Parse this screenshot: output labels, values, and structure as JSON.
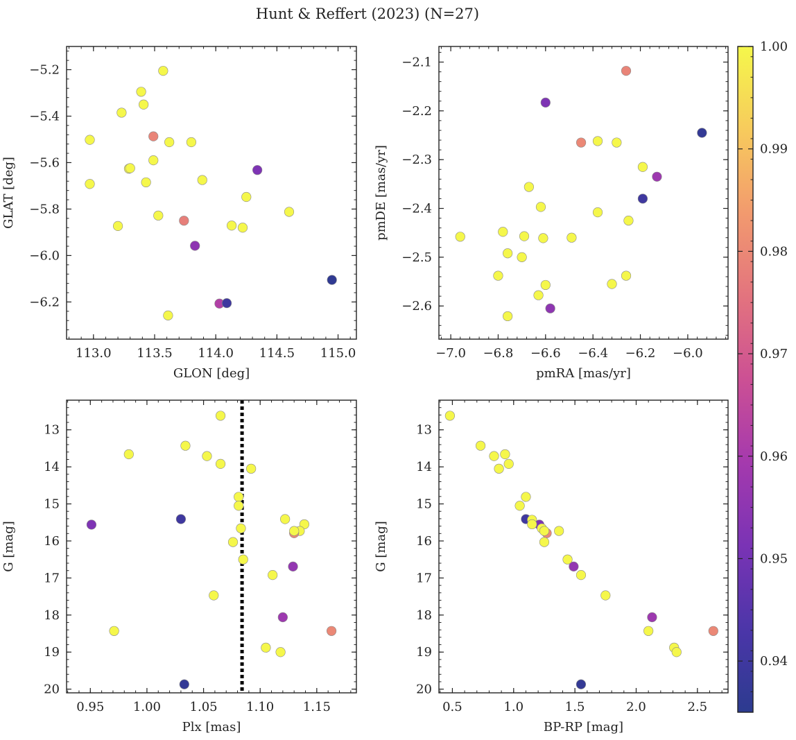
{
  "figure": {
    "title": "Hunt & Reffert (2023) (N=27)"
  },
  "colorbar": {
    "range": [
      0.935,
      1.0
    ],
    "ticks": [
      0.94,
      0.95,
      0.96,
      0.97,
      0.98,
      0.99,
      1.0
    ],
    "tick_labels": [
      "0.94",
      "0.95",
      "0.96",
      "0.97",
      "0.98",
      "0.99",
      "1.00"
    ],
    "colormap": "plasma"
  },
  "chart_data": [
    {
      "type": "scatter",
      "id": "glon-glat",
      "xlabel": "GLON [deg]",
      "ylabel": "GLAT [deg]",
      "xlim": [
        112.78,
        115.15
      ],
      "ylim": [
        -6.36,
        -5.1
      ],
      "xticks": [
        113.0,
        113.5,
        114.0,
        114.5,
        115.0
      ],
      "xtick_labels": [
        "113.0",
        "113.5",
        "114.0",
        "114.5",
        "115.0"
      ],
      "yticks": [
        -6.2,
        -6.0,
        -5.8,
        -5.6,
        -5.4,
        -5.2
      ],
      "ytick_labels": [
        "−6.2",
        "−6.0",
        "−5.8",
        "−5.6",
        "−5.4",
        "−5.2"
      ],
      "points": [
        {
          "x": 113.57,
          "y": -5.205,
          "c": 1.0
        },
        {
          "x": 113.39,
          "y": -5.295,
          "c": 1.0
        },
        {
          "x": 113.41,
          "y": -5.35,
          "c": 1.0
        },
        {
          "x": 113.23,
          "y": -5.385,
          "c": 1.0
        },
        {
          "x": 113.49,
          "y": -5.487,
          "c": 0.979
        },
        {
          "x": 112.97,
          "y": -5.502,
          "c": 1.0
        },
        {
          "x": 113.62,
          "y": -5.512,
          "c": 1.0
        },
        {
          "x": 113.8,
          "y": -5.512,
          "c": 1.0
        },
        {
          "x": 113.49,
          "y": -5.59,
          "c": 1.0
        },
        {
          "x": 113.29,
          "y": -5.626,
          "c": 1.0
        },
        {
          "x": 114.34,
          "y": -5.632,
          "c": 0.952
        },
        {
          "x": 113.89,
          "y": -5.675,
          "c": 1.0
        },
        {
          "x": 113.43,
          "y": -5.685,
          "c": 1.0
        },
        {
          "x": 112.97,
          "y": -5.692,
          "c": 1.0
        },
        {
          "x": 114.25,
          "y": -5.748,
          "c": 1.0
        },
        {
          "x": 114.6,
          "y": -5.812,
          "c": 1.0
        },
        {
          "x": 113.53,
          "y": -5.828,
          "c": 1.0
        },
        {
          "x": 113.74,
          "y": -5.85,
          "c": 0.978
        },
        {
          "x": 113.2,
          "y": -5.873,
          "c": 1.0
        },
        {
          "x": 114.13,
          "y": -5.871,
          "c": 1.0
        },
        {
          "x": 114.22,
          "y": -5.88,
          "c": 1.0
        },
        {
          "x": 113.83,
          "y": -5.958,
          "c": 0.955
        },
        {
          "x": 114.95,
          "y": -6.105,
          "c": 0.936
        },
        {
          "x": 114.03,
          "y": -6.207,
          "c": 0.962
        },
        {
          "x": 114.09,
          "y": -6.205,
          "c": 0.94
        },
        {
          "x": 113.61,
          "y": -6.258,
          "c": 1.0
        },
        {
          "x": 113.3,
          "y": -5.624,
          "c": 1.0
        }
      ]
    },
    {
      "type": "scatter",
      "id": "pmra-pmde",
      "xlabel": "pmRA [mas/yr]",
      "ylabel": "pmDE [mas/yr]",
      "xlim": [
        -7.05,
        -5.83
      ],
      "ylim": [
        -2.668,
        -2.068
      ],
      "xticks": [
        -7.0,
        -6.8,
        -6.6,
        -6.4,
        -6.2,
        -6.0
      ],
      "xtick_labels": [
        "−7.0",
        "−6.8",
        "−6.6",
        "−6.4",
        "−6.2",
        "−6.0"
      ],
      "yticks": [
        -2.6,
        -2.5,
        -2.4,
        -2.3,
        -2.2,
        -2.1
      ],
      "ytick_labels": [
        "−2.6",
        "−2.5",
        "−2.4",
        "−2.3",
        "−2.2",
        "−2.1"
      ],
      "points": [
        {
          "x": -6.26,
          "y": -2.118,
          "c": 0.979
        },
        {
          "x": -6.6,
          "y": -2.183,
          "c": 0.952
        },
        {
          "x": -5.94,
          "y": -2.245,
          "c": 0.937
        },
        {
          "x": -6.45,
          "y": -2.265,
          "c": 0.98
        },
        {
          "x": -6.38,
          "y": -2.262,
          "c": 1.0
        },
        {
          "x": -6.3,
          "y": -2.265,
          "c": 1.0
        },
        {
          "x": -6.19,
          "y": -2.315,
          "c": 1.0
        },
        {
          "x": -6.13,
          "y": -2.335,
          "c": 0.958
        },
        {
          "x": -6.67,
          "y": -2.356,
          "c": 1.0
        },
        {
          "x": -6.62,
          "y": -2.397,
          "c": 1.0
        },
        {
          "x": -6.38,
          "y": -2.408,
          "c": 1.0
        },
        {
          "x": -6.19,
          "y": -2.38,
          "c": 0.94
        },
        {
          "x": -6.25,
          "y": -2.425,
          "c": 1.0
        },
        {
          "x": -6.78,
          "y": -2.448,
          "c": 1.0
        },
        {
          "x": -6.96,
          "y": -2.458,
          "c": 1.0
        },
        {
          "x": -6.69,
          "y": -2.457,
          "c": 1.0
        },
        {
          "x": -6.61,
          "y": -2.461,
          "c": 1.0
        },
        {
          "x": -6.49,
          "y": -2.46,
          "c": 1.0
        },
        {
          "x": -6.76,
          "y": -2.492,
          "c": 1.0
        },
        {
          "x": -6.7,
          "y": -2.5,
          "c": 1.0
        },
        {
          "x": -6.8,
          "y": -2.538,
          "c": 1.0
        },
        {
          "x": -6.26,
          "y": -2.538,
          "c": 1.0
        },
        {
          "x": -6.32,
          "y": -2.555,
          "c": 1.0
        },
        {
          "x": -6.6,
          "y": -2.557,
          "c": 1.0
        },
        {
          "x": -6.63,
          "y": -2.578,
          "c": 1.0
        },
        {
          "x": -6.58,
          "y": -2.605,
          "c": 0.955
        },
        {
          "x": -6.76,
          "y": -2.621,
          "c": 1.0
        }
      ]
    },
    {
      "type": "scatter",
      "id": "plx-g",
      "xlabel": "Plx [mas]",
      "ylabel": "G [mag]",
      "xlim": [
        0.929,
        1.185
      ],
      "ylim": [
        20.1,
        12.2
      ],
      "y_inverted": true,
      "reference_line": {
        "x": 1.084,
        "style": "dotted"
      },
      "xticks": [
        0.95,
        1.0,
        1.05,
        1.1,
        1.15
      ],
      "xtick_labels": [
        "0.95",
        "1.00",
        "1.05",
        "1.10",
        "1.15"
      ],
      "yticks": [
        13,
        14,
        15,
        16,
        17,
        18,
        19,
        20
      ],
      "ytick_labels": [
        "13",
        "14",
        "15",
        "16",
        "17",
        "18",
        "19",
        "20"
      ],
      "points": [
        {
          "x": 1.065,
          "y": 12.62,
          "c": 1.0
        },
        {
          "x": 1.034,
          "y": 13.43,
          "c": 1.0
        },
        {
          "x": 0.984,
          "y": 13.66,
          "c": 1.0
        },
        {
          "x": 1.053,
          "y": 13.71,
          "c": 1.0
        },
        {
          "x": 1.065,
          "y": 13.92,
          "c": 1.0
        },
        {
          "x": 1.092,
          "y": 14.05,
          "c": 1.0
        },
        {
          "x": 1.081,
          "y": 14.81,
          "c": 1.0
        },
        {
          "x": 1.081,
          "y": 15.05,
          "c": 1.0
        },
        {
          "x": 1.03,
          "y": 15.41,
          "c": 0.94
        },
        {
          "x": 1.122,
          "y": 15.41,
          "c": 1.0
        },
        {
          "x": 0.951,
          "y": 15.56,
          "c": 0.952
        },
        {
          "x": 1.139,
          "y": 15.55,
          "c": 1.0
        },
        {
          "x": 1.083,
          "y": 15.66,
          "c": 1.0
        },
        {
          "x": 1.135,
          "y": 15.73,
          "c": 1.0
        },
        {
          "x": 1.13,
          "y": 15.79,
          "c": 0.98
        },
        {
          "x": 1.13,
          "y": 15.73,
          "c": 1.0
        },
        {
          "x": 1.076,
          "y": 16.03,
          "c": 1.0
        },
        {
          "x": 1.085,
          "y": 16.5,
          "c": 1.0
        },
        {
          "x": 1.129,
          "y": 16.69,
          "c": 0.956
        },
        {
          "x": 1.111,
          "y": 16.92,
          "c": 1.0
        },
        {
          "x": 1.059,
          "y": 17.47,
          "c": 1.0
        },
        {
          "x": 1.12,
          "y": 18.06,
          "c": 0.958
        },
        {
          "x": 0.971,
          "y": 18.43,
          "c": 1.0
        },
        {
          "x": 1.163,
          "y": 18.43,
          "c": 0.98
        },
        {
          "x": 1.105,
          "y": 18.88,
          "c": 1.0
        },
        {
          "x": 1.118,
          "y": 19.0,
          "c": 1.0
        },
        {
          "x": 1.033,
          "y": 19.87,
          "c": 0.937
        }
      ]
    },
    {
      "type": "scatter",
      "id": "bprp-g",
      "xlabel": "BP-RP [mag]",
      "ylabel": "G [mag]",
      "xlim": [
        0.39,
        2.75
      ],
      "ylim": [
        20.1,
        12.2
      ],
      "y_inverted": true,
      "xticks": [
        0.5,
        1.0,
        1.5,
        2.0,
        2.5
      ],
      "xtick_labels": [
        "0.5",
        "1.0",
        "1.5",
        "2.0",
        "2.5"
      ],
      "yticks": [
        13,
        14,
        15,
        16,
        17,
        18,
        19,
        20
      ],
      "ytick_labels": [
        "13",
        "14",
        "15",
        "16",
        "17",
        "18",
        "19",
        "20"
      ],
      "points": [
        {
          "x": 0.48,
          "y": 12.62,
          "c": 1.0
        },
        {
          "x": 0.73,
          "y": 13.43,
          "c": 1.0
        },
        {
          "x": 0.84,
          "y": 13.71,
          "c": 1.0
        },
        {
          "x": 0.93,
          "y": 13.66,
          "c": 1.0
        },
        {
          "x": 0.96,
          "y": 13.92,
          "c": 1.0
        },
        {
          "x": 0.88,
          "y": 14.05,
          "c": 1.0
        },
        {
          "x": 1.1,
          "y": 14.81,
          "c": 1.0
        },
        {
          "x": 1.05,
          "y": 15.05,
          "c": 1.0
        },
        {
          "x": 1.1,
          "y": 15.41,
          "c": 0.94
        },
        {
          "x": 1.15,
          "y": 15.43,
          "c": 1.0
        },
        {
          "x": 1.21,
          "y": 15.56,
          "c": 0.952
        },
        {
          "x": 1.15,
          "y": 15.55,
          "c": 1.0
        },
        {
          "x": 1.23,
          "y": 15.66,
          "c": 1.0
        },
        {
          "x": 1.27,
          "y": 15.79,
          "c": 0.98
        },
        {
          "x": 1.25,
          "y": 15.73,
          "c": 1.0
        },
        {
          "x": 1.37,
          "y": 15.73,
          "c": 1.0
        },
        {
          "x": 1.25,
          "y": 16.03,
          "c": 1.0
        },
        {
          "x": 1.44,
          "y": 16.5,
          "c": 1.0
        },
        {
          "x": 1.49,
          "y": 16.69,
          "c": 0.956
        },
        {
          "x": 1.55,
          "y": 16.92,
          "c": 1.0
        },
        {
          "x": 1.75,
          "y": 17.47,
          "c": 1.0
        },
        {
          "x": 2.13,
          "y": 18.06,
          "c": 0.958
        },
        {
          "x": 2.1,
          "y": 18.43,
          "c": 1.0
        },
        {
          "x": 2.63,
          "y": 18.43,
          "c": 0.98
        },
        {
          "x": 2.31,
          "y": 18.88,
          "c": 1.0
        },
        {
          "x": 2.33,
          "y": 19.0,
          "c": 1.0
        },
        {
          "x": 1.55,
          "y": 19.87,
          "c": 0.937
        }
      ]
    }
  ]
}
